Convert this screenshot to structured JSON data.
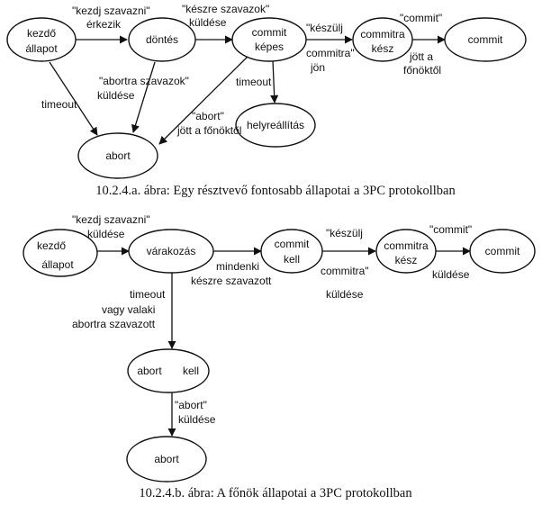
{
  "diagram_a": {
    "caption": "10.2.4.a. ábra: Egy résztvevő fontosabb állapotai a 3PC protokollban",
    "nodes": {
      "kezdo_1": "kezdő",
      "kezdo_2": "állapot",
      "dontes": "döntés",
      "commit_kepes_1": "commit",
      "commit_kepes_2": "képes",
      "commitra_kesz_1": "commitra",
      "commitra_kesz_2": "kész",
      "commit": "commit",
      "abort": "abort",
      "helyreallitas": "helyreállítás"
    },
    "edges": {
      "e1_1": "\"kezdj szavazni\"",
      "e1_2": "érkezik",
      "e2_1": "\"készre szavazok\"",
      "e2_2": "küldése",
      "e3_1": "\"készülj",
      "e3_2": "commitra\"",
      "e3_3": "jön",
      "e4_1": "\"commit\"",
      "e4_2": "jött a",
      "e4_3": "főnöktől",
      "e5": "timeout",
      "e6_1": "\"abortra szavazok\"",
      "e6_2": "küldése",
      "e7_1": "\"abort\"",
      "e7_2": "jött a főnöktől",
      "e8": "timeout"
    }
  },
  "diagram_b": {
    "caption": "10.2.4.b. ábra: A főnök állapotai a 3PC protokollban",
    "nodes": {
      "kezdo_1": "kezdő",
      "kezdo_2": "állapot",
      "varakozas": "várakozás",
      "commit_kell_1": "commit",
      "commit_kell_2": "kell",
      "commitra_kesz_1": "commitra",
      "commitra_kesz_2": "kész",
      "commit": "commit",
      "abort_kell_1": "abort",
      "abort_kell_2": "kell",
      "abort": "abort"
    },
    "edges": {
      "e1_1": "\"kezdj szavazni\"",
      "e1_2": "küldése",
      "e2_1": "mindenki",
      "e2_2": "készre szavazott",
      "e3_1": "\"készülj",
      "e3_2": "commitra\"",
      "e3_3": "küldése",
      "e4_1": "\"commit\"",
      "e4_2": "küldése",
      "e5_1": "timeout",
      "e5_2": "vagy valaki",
      "e5_3": "abortra szavazott",
      "e6_1": "\"abort\"",
      "e6_2": "küldése"
    }
  }
}
